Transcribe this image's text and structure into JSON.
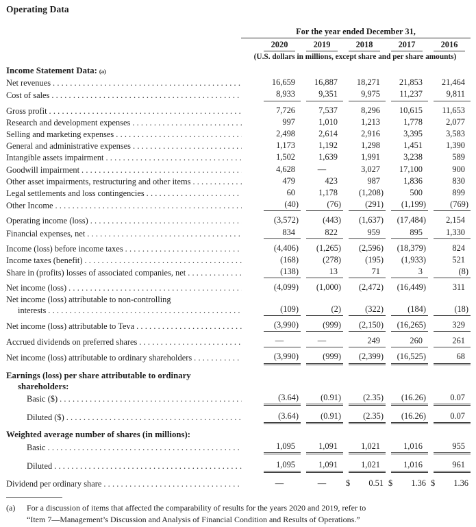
{
  "title": "Operating Data",
  "colors": {
    "ink": "#1e1e1e",
    "rule": "#3d3d3d"
  },
  "header": {
    "period_label": "For the year ended December 31,",
    "years": [
      "2020",
      "2019",
      "2018",
      "2017",
      "2016"
    ],
    "units_note": "(U.S. dollars in millions, except share and per share amounts)"
  },
  "table": {
    "rows": [
      {
        "heading": true,
        "label": "Income Statement Data:",
        "sup": "(a)"
      },
      {
        "label": "Net revenues",
        "values": [
          "16,659",
          "16,887",
          "18,271",
          "21,853",
          "21,464"
        ]
      },
      {
        "label": "Cost of sales",
        "values": [
          "8,933",
          "9,351",
          "9,975",
          "11,237",
          "9,811"
        ],
        "underline": "single"
      },
      {
        "label": "Gross profit",
        "values": [
          "7,726",
          "7,537",
          "8,296",
          "10,615",
          "11,653"
        ]
      },
      {
        "label": "Research and development expenses",
        "values": [
          "997",
          "1,010",
          "1,213",
          "1,778",
          "2,077"
        ]
      },
      {
        "label": "Selling and marketing expenses",
        "values": [
          "2,498",
          "2,614",
          "2,916",
          "3,395",
          "3,583"
        ]
      },
      {
        "label": "General and administrative expenses",
        "values": [
          "1,173",
          "1,192",
          "1,298",
          "1,451",
          "1,390"
        ]
      },
      {
        "label": "Intangible assets impairment",
        "values": [
          "1,502",
          "1,639",
          "1,991",
          "3,238",
          "589"
        ]
      },
      {
        "label": "Goodwill impairment",
        "values": [
          "4,628",
          "—",
          "3,027",
          "17,100",
          "900"
        ]
      },
      {
        "label": "Other asset impairments, restructuring and other items",
        "values": [
          "479",
          "423",
          "987",
          "1,836",
          "830"
        ]
      },
      {
        "label": "Legal settlements and loss contingencies",
        "values": [
          "60",
          "1,178",
          "(1,208)",
          "500",
          "899"
        ]
      },
      {
        "label": "Other Income",
        "values": [
          "(40)",
          "(76)",
          "(291)",
          "(1,199)",
          "(769)"
        ],
        "underline": "single"
      },
      {
        "label": "Operating income (loss)",
        "values": [
          "(3,572)",
          "(443)",
          "(1,637)",
          "(17,484)",
          "2,154"
        ]
      },
      {
        "label": "Financial expenses, net",
        "values": [
          "834",
          "822",
          "959",
          "895",
          "1,330"
        ],
        "underline": "single"
      },
      {
        "label": "Income (loss) before income taxes",
        "values": [
          "(4,406)",
          "(1,265)",
          "(2,596)",
          "(18,379)",
          "824"
        ]
      },
      {
        "label": "Income taxes (benefit)",
        "values": [
          "(168)",
          "(278)",
          "(195)",
          "(1,933)",
          "521"
        ]
      },
      {
        "label": "Share in (profits) losses of associated companies, net",
        "values": [
          "(138)",
          "13",
          "71",
          "3",
          "(8)"
        ],
        "underline": "single"
      },
      {
        "label": "Net income (loss)",
        "values": [
          "(4,099)",
          "(1,000)",
          "(2,472)",
          "(16,449)",
          "311"
        ]
      },
      {
        "label": "Net income (loss) attributable to non-controlling",
        "label2": "interests",
        "values": [
          "(109)",
          "(2)",
          "(322)",
          "(184)",
          "(18)"
        ],
        "underline": "single"
      },
      {
        "label": "Net income (loss) attributable to Teva",
        "values": [
          "(3,990)",
          "(999)",
          "(2,150)",
          "(16,265)",
          "329"
        ],
        "underline": "single"
      },
      {
        "label": "Accrued dividends on preferred shares",
        "values": [
          "—",
          "—",
          "249",
          "260",
          "261"
        ],
        "underline": "single"
      },
      {
        "label": "Net income (loss) attributable to ordinary shareholders",
        "values": [
          "(3,990)",
          "(999)",
          "(2,399)",
          "(16,525)",
          "68"
        ],
        "underline": "double"
      },
      {
        "heading": true,
        "label": "Earnings (loss) per share attributable to ordinary",
        "label2": "shareholders:"
      },
      {
        "label": "Basic ($)",
        "indent": true,
        "values": [
          "(3.64)",
          "(0.91)",
          "(2.35)",
          "(16.26)",
          "0.07"
        ],
        "underline": "double"
      },
      {
        "label": "Diluted ($)",
        "indent": true,
        "values": [
          "(3.64)",
          "(0.91)",
          "(2.35)",
          "(16.26)",
          "0.07"
        ],
        "underline": "double"
      },
      {
        "heading": true,
        "gap": true,
        "label": "Weighted average number of shares (in millions):"
      },
      {
        "label": "Basic",
        "indent": true,
        "values": [
          "1,095",
          "1,091",
          "1,021",
          "1,016",
          "955"
        ],
        "underline": "double"
      },
      {
        "label": "Diluted",
        "indent": true,
        "values": [
          "1,095",
          "1,091",
          "1,021",
          "1,016",
          "961"
        ],
        "underline": "double"
      },
      {
        "label": "Dividend per ordinary share",
        "values": [
          "—",
          "—",
          "$ 0.51",
          "$ 1.36",
          "$ 1.36"
        ]
      }
    ]
  },
  "footnote": {
    "marker": "(a)",
    "text": "For a discussion of items that affected the comparability of results for the years 2020 and 2019, refer to\n“Item 7—Management’s Discussion and Analysis of Financial Condition and Results of Operations.”"
  }
}
